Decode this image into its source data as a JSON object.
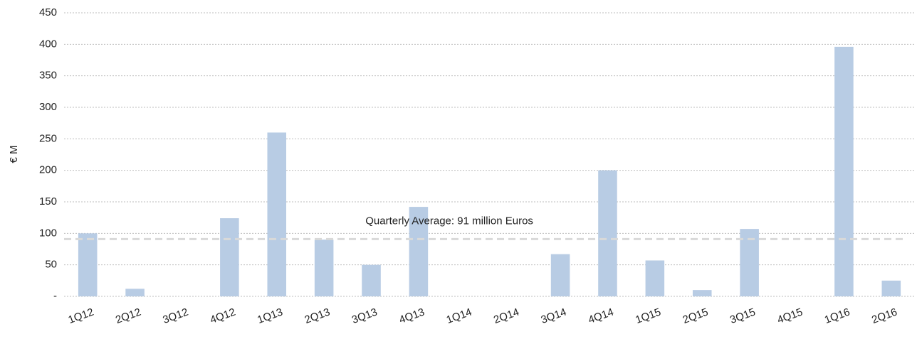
{
  "chart_data": {
    "type": "bar",
    "ylabel": "€ M",
    "categories": [
      "1Q12",
      "2Q12",
      "3Q12",
      "4Q12",
      "1Q13",
      "2Q13",
      "3Q13",
      "4Q13",
      "1Q14",
      "2Q14",
      "3Q14",
      "4Q14",
      "1Q15",
      "2Q15",
      "3Q15",
      "4Q15",
      "1Q16",
      "2Q16"
    ],
    "values": [
      100,
      12,
      0,
      124,
      260,
      90,
      50,
      142,
      0,
      0,
      67,
      200,
      57,
      10,
      107,
      0,
      396,
      25
    ],
    "color": "#b8cce4",
    "ylim": [
      0,
      450
    ],
    "yticks": [
      {
        "value": 0,
        "label": "-"
      },
      50,
      100,
      150,
      200,
      250,
      300,
      350,
      400,
      450
    ],
    "grid": true,
    "average": {
      "value": 91,
      "label": "Quarterly Average: 91 million Euros",
      "color": "#d9d9d9"
    }
  }
}
